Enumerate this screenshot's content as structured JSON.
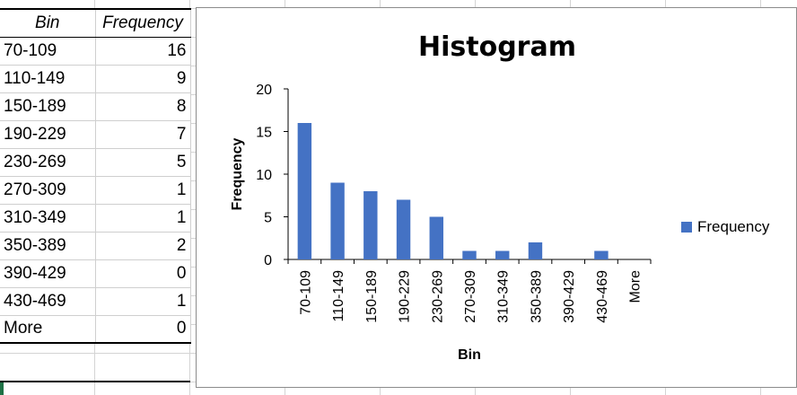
{
  "table": {
    "headers": [
      "Bin",
      "Frequency"
    ],
    "rows": [
      [
        "70-109",
        "16"
      ],
      [
        "110-149",
        "9"
      ],
      [
        "150-189",
        "8"
      ],
      [
        "190-229",
        "7"
      ],
      [
        "230-269",
        "5"
      ],
      [
        "270-309",
        "1"
      ],
      [
        "310-349",
        "1"
      ],
      [
        "350-389",
        "2"
      ],
      [
        "390-429",
        "0"
      ],
      [
        "430-469",
        "1"
      ],
      [
        "More",
        "0"
      ]
    ]
  },
  "chart_data": {
    "type": "bar",
    "title": "Histogram",
    "xlabel": "Bin",
    "ylabel": "Frequency",
    "categories": [
      "70-109",
      "110-149",
      "150-189",
      "190-229",
      "230-269",
      "270-309",
      "310-349",
      "350-389",
      "390-429",
      "430-469",
      "More"
    ],
    "series": [
      {
        "name": "Frequency",
        "values": [
          16,
          9,
          8,
          7,
          5,
          1,
          1,
          2,
          0,
          1,
          0
        ],
        "color": "#4472c4"
      }
    ],
    "ylim": [
      0,
      20
    ],
    "yticks": [
      "0",
      "5",
      "10",
      "15",
      "20"
    ],
    "grid": false,
    "legend": "right"
  }
}
